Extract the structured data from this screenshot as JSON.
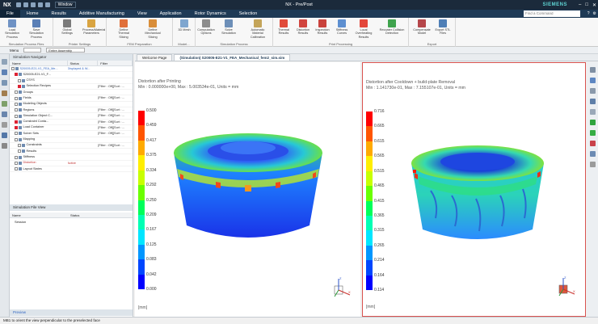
{
  "app": {
    "logo": "NX",
    "window_button": "Window",
    "title": "NX - Pre/Post",
    "brand": "SIEMENS"
  },
  "menu": {
    "tabs": [
      "File",
      "Home",
      "Results",
      "Additive Manufacturing",
      "View",
      "Application",
      "Rotor Dynamics",
      "Selection"
    ],
    "search_placeholder": "Find a Command"
  },
  "ribbon": {
    "groups": [
      {
        "name": "Simulation Process Files",
        "buttons": [
          "Load Simulation Process",
          "Save Simulation Process"
        ]
      },
      {
        "name": "Printer Settings",
        "buttons": [
          "Global Settings",
          "Process/Material Parameters"
        ]
      },
      {
        "name": "FEM Preparation",
        "buttons": [
          "Define Thermal Slicing",
          "Define Mechanical Slicing"
        ]
      },
      {
        "name": "Model...",
        "buttons": [
          "3D Mesh"
        ]
      },
      {
        "name": "Simulation Process",
        "buttons": [
          "Computation Options",
          "Solve Simulation",
          "Automatic Material Calibration"
        ]
      },
      {
        "name": "Print Processing",
        "buttons": [
          "Thermal Results",
          "Distortion Results",
          "Inspection Results",
          "Stiffness Curves",
          "Local Overheating Results",
          "Recoater Collision Detection"
        ]
      },
      {
        "name": "Export",
        "buttons": [
          "Compensate Model",
          "Export STL Files"
        ]
      }
    ]
  },
  "toolbar": {
    "menu_label": "Menu",
    "filter_value": "",
    "assembly_value": "Entire Assembly"
  },
  "navigator": {
    "title": "Simulation Navigator",
    "columns": [
      "Name",
      "Status",
      "Filter"
    ],
    "rows": [
      {
        "name": "S20005-E21-V1_FEA_Me...",
        "status": "Displayed & W...",
        "filter": "",
        "indent": 0,
        "cls": "sel",
        "check": false
      },
      {
        "name": "S20005-E21-V1_F...",
        "status": "",
        "filter": "",
        "indent": 1,
        "cls": "",
        "check": true
      },
      {
        "name": "CSYS",
        "status": "",
        "filter": "",
        "indent": 2,
        "cls": "",
        "check": false
      },
      {
        "name": "Selection Recipes",
        "status": "",
        "filter": "[Filter : Off][Sort : ...",
        "indent": 2,
        "cls": "",
        "check": true
      },
      {
        "name": "Groups",
        "status": "",
        "filter": "",
        "indent": 1,
        "cls": "",
        "check": false
      },
      {
        "name": "Fields",
        "status": "",
        "filter": "[Filter : Off][Sort : ...",
        "indent": 1,
        "cls": "",
        "check": false
      },
      {
        "name": "Modeling Objects",
        "status": "",
        "filter": "",
        "indent": 1,
        "cls": "",
        "check": false
      },
      {
        "name": "Regions",
        "status": "",
        "filter": "[Filter : Off][Sort : ...",
        "indent": 1,
        "cls": "",
        "check": false
      },
      {
        "name": "Simulation Object C...",
        "status": "",
        "filter": "[Filter : Off][Sort : ...",
        "indent": 1,
        "cls": "",
        "check": false
      },
      {
        "name": "Constraint Conta...",
        "status": "",
        "filter": "[Filter : Off][Sort : ...",
        "indent": 1,
        "cls": "",
        "check": true
      },
      {
        "name": "Load Container",
        "status": "",
        "filter": "[Filter : Off][Sort : ...",
        "indent": 1,
        "cls": "",
        "check": true
      },
      {
        "name": "Solver Sets",
        "status": "",
        "filter": "[Filter : Off][Sort : ...",
        "indent": 1,
        "cls": "",
        "check": false
      },
      {
        "name": "Mapping",
        "status": "",
        "filter": "",
        "indent": 1,
        "cls": "",
        "check": false
      },
      {
        "name": "Constraints",
        "status": "",
        "filter": "[Filter : Off][Sort : ...",
        "indent": 2,
        "cls": "",
        "check": false
      },
      {
        "name": "Results",
        "status": "",
        "filter": "",
        "indent": 2,
        "cls": "",
        "check": false
      },
      {
        "name": "Stiffness",
        "status": "",
        "filter": "",
        "indent": 1,
        "cls": "",
        "check": false
      },
      {
        "name": "Distortion",
        "status": "Active",
        "filter": "",
        "indent": 1,
        "cls": "red",
        "check": false
      },
      {
        "name": "Layout States",
        "status": "",
        "filter": "",
        "indent": 1,
        "cls": "",
        "check": false
      }
    ],
    "file_view_title": "Simulation File View",
    "file_columns": [
      "Name",
      "Status"
    ],
    "session_label": "Session",
    "preview_label": "Preview"
  },
  "graphics_tabs": [
    "Welcome Page",
    "(Simulation) S20005-E21-V1_FEA_Mechanical_fem2_sim.sim"
  ],
  "viewports": {
    "left": {
      "title": "Distortion after Printing",
      "range": "Min : 0.000000e+00, Max : 5.003534e-01, Units = mm",
      "ticks": [
        "0.500",
        "0.459",
        "0.417",
        "0.375",
        "0.334",
        "0.292",
        "0.250",
        "0.209",
        "0.167",
        "0.125",
        "0.083",
        "0.042",
        "0.000"
      ],
      "unit": "[mm]"
    },
    "right": {
      "title": "Distortion after Cooldown + build-plate Removal",
      "range": "Min : 1.141730e-01, Max : 7.155107e-01, Units = mm",
      "ticks": [
        "0.716",
        "0.665",
        "0.615",
        "0.565",
        "0.515",
        "0.465",
        "0.415",
        "0.365",
        "0.315",
        "0.265",
        "0.214",
        "0.164",
        "0.114"
      ],
      "unit": "[mm]"
    }
  },
  "status_bar": "MB1 to orient the view perpendicular to the preselected face",
  "colors": {
    "titlebar": "#1b2a3b",
    "menubar": "#1e3a56",
    "legend_top": "#ff0000",
    "legend_bottom": "#0000ff",
    "active_view_border": "#d9524f"
  }
}
